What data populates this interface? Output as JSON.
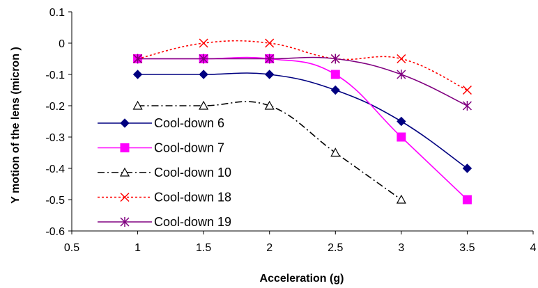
{
  "chart_data": {
    "type": "line",
    "xlabel": "Acceleration (g)",
    "ylabel": "Y motion of the lens (micron )",
    "xlim": [
      0.5,
      4
    ],
    "ylim": [
      -0.6,
      0.1
    ],
    "xticks": [
      "0.5",
      "1",
      "1.5",
      "2",
      "2.5",
      "3",
      "3.5",
      "4"
    ],
    "yticks": [
      "0.1",
      "0",
      "-0.1",
      "-0.2",
      "-0.3",
      "-0.4",
      "-0.5",
      "-0.6"
    ],
    "legend_position": "left-bottom",
    "grid": false,
    "series": [
      {
        "name": "Cool-down 6",
        "x": [
          1,
          1.5,
          2,
          2.5,
          3,
          3.5
        ],
        "values": [
          -0.1,
          -0.1,
          -0.1,
          -0.15,
          -0.25,
          -0.4
        ],
        "color": "#000080",
        "dash": "solid",
        "marker": "diamond"
      },
      {
        "name": "Cool-down 7",
        "x": [
          1,
          1.5,
          2,
          2.5,
          3,
          3.5
        ],
        "values": [
          -0.05,
          -0.05,
          -0.05,
          -0.1,
          -0.3,
          -0.5
        ],
        "color": "#ff00ff",
        "dash": "solid",
        "marker": "square"
      },
      {
        "name": "Cool-down 10",
        "x": [
          1,
          1.5,
          2,
          2.5,
          3
        ],
        "values": [
          -0.2,
          -0.2,
          -0.2,
          -0.35,
          -0.5
        ],
        "color": "#000000",
        "dash": "dashdot",
        "marker": "triangle"
      },
      {
        "name": "Cool-down 18",
        "x": [
          1,
          1.5,
          2,
          2.5,
          3,
          3.5
        ],
        "values": [
          -0.05,
          0,
          0,
          -0.05,
          -0.05,
          -0.15
        ],
        "color": "#ff0000",
        "dash": "dotted",
        "marker": "x"
      },
      {
        "name": "Cool-down 19",
        "x": [
          1,
          1.5,
          2,
          2.5,
          3,
          3.5
        ],
        "values": [
          -0.05,
          -0.05,
          -0.05,
          -0.05,
          -0.1,
          -0.2
        ],
        "color": "#800080",
        "dash": "solid",
        "marker": "asterisk"
      }
    ]
  }
}
